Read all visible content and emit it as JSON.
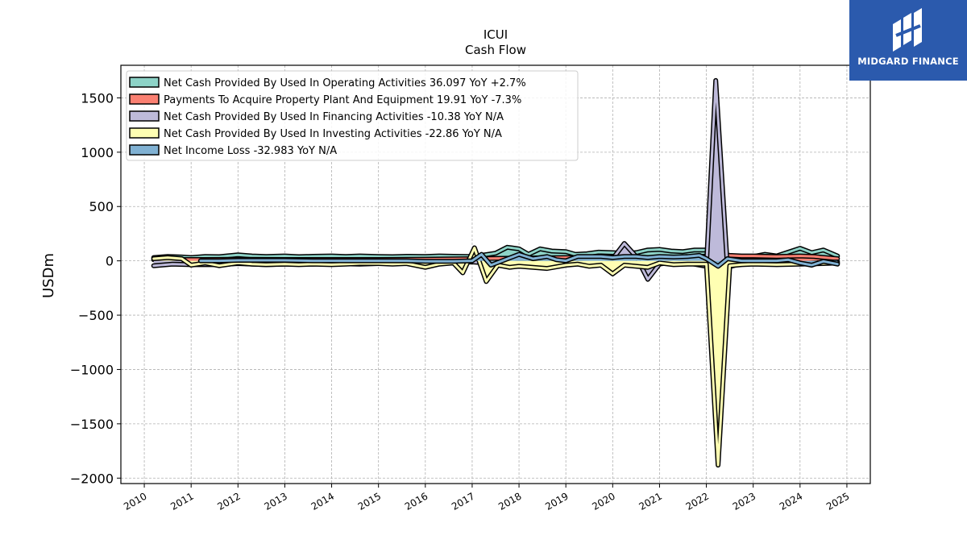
{
  "brand": {
    "name": "MIDGARD FINANCE",
    "logo_icon": "midgard-logo-icon",
    "background": "#2b5aad"
  },
  "chart_data": {
    "type": "area",
    "title": "ICUI",
    "subtitle": "Cash Flow",
    "xlabel": "",
    "ylabel": "USDm",
    "xlim": [
      2009.5,
      2025.5
    ],
    "ylim": [
      -2050,
      1800
    ],
    "x_ticks": [
      "2010",
      "2011",
      "2012",
      "2013",
      "2014",
      "2015",
      "2016",
      "2017",
      "2018",
      "2019",
      "2020",
      "2021",
      "2022",
      "2023",
      "2024",
      "2025"
    ],
    "y_ticks": [
      1500,
      1000,
      500,
      0,
      -500,
      -1000,
      -1500,
      -2000
    ],
    "y_tick_labels": [
      "1500",
      "1000",
      "500",
      "0",
      "−500",
      "−1000",
      "−1500",
      "−2000"
    ],
    "grid": true,
    "legend_position": "top-left",
    "series": [
      {
        "name": "Net Cash Provided By Used In Operating Activities",
        "legend": "Net Cash Provided By Used In Operating Activities  36.097 YoY +2.7%",
        "color": "#8dd3c7",
        "points": [
          [
            2010.2,
            30
          ],
          [
            2010.5,
            40
          ],
          [
            2010.8,
            35
          ],
          [
            2011.0,
            30
          ],
          [
            2011.3,
            40
          ],
          [
            2011.6,
            38
          ],
          [
            2012.0,
            55
          ],
          [
            2012.3,
            45
          ],
          [
            2012.6,
            40
          ],
          [
            2013.0,
            45
          ],
          [
            2013.3,
            38
          ],
          [
            2013.6,
            42
          ],
          [
            2014.0,
            45
          ],
          [
            2014.3,
            40
          ],
          [
            2014.6,
            45
          ],
          [
            2015.0,
            40
          ],
          [
            2015.3,
            38
          ],
          [
            2015.6,
            42
          ],
          [
            2016.0,
            40
          ],
          [
            2016.3,
            45
          ],
          [
            2016.6,
            42
          ],
          [
            2016.9,
            40
          ],
          [
            2017.0,
            45
          ],
          [
            2017.2,
            50
          ],
          [
            2017.5,
            70
          ],
          [
            2017.75,
            125
          ],
          [
            2018.0,
            110
          ],
          [
            2018.2,
            60
          ],
          [
            2018.45,
            110
          ],
          [
            2018.7,
            90
          ],
          [
            2019.0,
            85
          ],
          [
            2019.2,
            60
          ],
          [
            2019.45,
            65
          ],
          [
            2019.7,
            80
          ],
          [
            2020.0,
            75
          ],
          [
            2020.25,
            70
          ],
          [
            2020.5,
            75
          ],
          [
            2020.75,
            100
          ],
          [
            2021.0,
            105
          ],
          [
            2021.25,
            90
          ],
          [
            2021.5,
            85
          ],
          [
            2021.75,
            100
          ],
          [
            2022.0,
            100
          ],
          [
            2022.25,
            45
          ],
          [
            2022.5,
            40
          ],
          [
            2022.75,
            35
          ],
          [
            2023.0,
            40
          ],
          [
            2023.25,
            60
          ],
          [
            2023.5,
            45
          ],
          [
            2023.75,
            80
          ],
          [
            2024.0,
            115
          ],
          [
            2024.25,
            75
          ],
          [
            2024.5,
            100
          ],
          [
            2024.8,
            45
          ]
        ]
      },
      {
        "name": "Payments To Acquire Property Plant And Equipment",
        "legend": "Payments To Acquire Property Plant And Equipment  19.91 YoY -7.3%",
        "color": "#fb8072",
        "points": [
          [
            2010.2,
            10
          ],
          [
            2011.0,
            12
          ],
          [
            2012.0,
            14
          ],
          [
            2013.0,
            12
          ],
          [
            2014.0,
            12
          ],
          [
            2015.0,
            12
          ],
          [
            2016.0,
            15
          ],
          [
            2017.0,
            20
          ],
          [
            2018.0,
            25
          ],
          [
            2019.0,
            30
          ],
          [
            2020.0,
            30
          ],
          [
            2021.0,
            30
          ],
          [
            2021.8,
            35
          ],
          [
            2022.0,
            45
          ],
          [
            2022.25,
            60
          ],
          [
            2022.5,
            50
          ],
          [
            2022.75,
            45
          ],
          [
            2023.0,
            45
          ],
          [
            2023.5,
            40
          ],
          [
            2024.0,
            45
          ],
          [
            2024.3,
            40
          ],
          [
            2024.8,
            20
          ]
        ]
      },
      {
        "name": "Net Cash Provided By Used In Financing Activities",
        "legend": "Net Cash Provided By Used In Financing Activities  -10.38 YoY N/A",
        "color": "#bebada",
        "points": [
          [
            2010.2,
            -45
          ],
          [
            2010.6,
            -30
          ],
          [
            2011.0,
            -35
          ],
          [
            2011.6,
            -35
          ],
          [
            2012.0,
            -25
          ],
          [
            2012.6,
            -35
          ],
          [
            2013.0,
            -30
          ],
          [
            2013.6,
            -30
          ],
          [
            2014.0,
            -25
          ],
          [
            2014.6,
            -30
          ],
          [
            2015.0,
            -25
          ],
          [
            2015.6,
            -20
          ],
          [
            2016.0,
            -20
          ],
          [
            2016.5,
            -20
          ],
          [
            2017.0,
            -10
          ],
          [
            2017.3,
            -20
          ],
          [
            2017.6,
            -40
          ],
          [
            2018.0,
            -20
          ],
          [
            2018.5,
            -15
          ],
          [
            2019.0,
            -20
          ],
          [
            2019.5,
            -10
          ],
          [
            2020.0,
            20
          ],
          [
            2020.25,
            160
          ],
          [
            2020.5,
            40
          ],
          [
            2020.75,
            -170
          ],
          [
            2021.0,
            -30
          ],
          [
            2021.3,
            -10
          ],
          [
            2021.6,
            -20
          ],
          [
            2022.0,
            -50
          ],
          [
            2022.2,
            1660
          ],
          [
            2022.45,
            -60
          ],
          [
            2022.7,
            -30
          ],
          [
            2023.0,
            -25
          ],
          [
            2023.5,
            -20
          ],
          [
            2024.0,
            -25
          ],
          [
            2024.5,
            -15
          ],
          [
            2024.8,
            -10
          ]
        ]
      },
      {
        "name": "Net Cash Provided By Used In Investing Activities",
        "legend": "Net Cash Provided By Used In Investing Activities  -22.86 YoY N/A",
        "color": "#ffffb3",
        "points": [
          [
            2010.2,
            20
          ],
          [
            2010.5,
            30
          ],
          [
            2010.8,
            20
          ],
          [
            2011.0,
            -40
          ],
          [
            2011.3,
            -20
          ],
          [
            2011.6,
            -45
          ],
          [
            2012.0,
            -20
          ],
          [
            2012.3,
            -30
          ],
          [
            2012.6,
            -35
          ],
          [
            2013.0,
            -30
          ],
          [
            2013.3,
            -35
          ],
          [
            2013.6,
            -30
          ],
          [
            2014.0,
            -35
          ],
          [
            2014.3,
            -30
          ],
          [
            2014.6,
            -25
          ],
          [
            2015.0,
            -25
          ],
          [
            2015.3,
            -30
          ],
          [
            2015.6,
            -25
          ],
          [
            2016.0,
            -60
          ],
          [
            2016.3,
            -30
          ],
          [
            2016.6,
            -20
          ],
          [
            2016.8,
            -110
          ],
          [
            2017.05,
            120
          ],
          [
            2017.3,
            -190
          ],
          [
            2017.55,
            -40
          ],
          [
            2017.8,
            -60
          ],
          [
            2018.0,
            -50
          ],
          [
            2018.3,
            -60
          ],
          [
            2018.6,
            -70
          ],
          [
            2019.0,
            -40
          ],
          [
            2019.25,
            -30
          ],
          [
            2019.5,
            -50
          ],
          [
            2019.75,
            -40
          ],
          [
            2020.0,
            -120
          ],
          [
            2020.25,
            -40
          ],
          [
            2020.5,
            -50
          ],
          [
            2020.75,
            -60
          ],
          [
            2021.0,
            -20
          ],
          [
            2021.3,
            -35
          ],
          [
            2021.6,
            -30
          ],
          [
            2022.0,
            -30
          ],
          [
            2022.25,
            -1880
          ],
          [
            2022.5,
            -45
          ],
          [
            2022.75,
            -35
          ],
          [
            2023.0,
            -30
          ],
          [
            2023.5,
            -35
          ],
          [
            2024.0,
            -30
          ],
          [
            2024.5,
            -25
          ],
          [
            2024.8,
            -20
          ]
        ]
      },
      {
        "name": "Net Income Loss",
        "legend": "Net Income Loss  -32.983 YoY N/A",
        "color": "#80b1d3",
        "points": [
          [
            2011.2,
            0
          ],
          [
            2011.6,
            0
          ],
          [
            2012.0,
            5
          ],
          [
            2012.6,
            5
          ],
          [
            2013.0,
            5
          ],
          [
            2013.6,
            0
          ],
          [
            2014.0,
            0
          ],
          [
            2014.6,
            0
          ],
          [
            2015.0,
            0
          ],
          [
            2015.6,
            0
          ],
          [
            2016.0,
            -5
          ],
          [
            2016.6,
            -5
          ],
          [
            2017.0,
            0
          ],
          [
            2017.2,
            60
          ],
          [
            2017.4,
            -40
          ],
          [
            2017.7,
            10
          ],
          [
            2018.0,
            60
          ],
          [
            2018.3,
            20
          ],
          [
            2018.6,
            40
          ],
          [
            2018.8,
            10
          ],
          [
            2019.0,
            0
          ],
          [
            2019.25,
            40
          ],
          [
            2019.5,
            40
          ],
          [
            2019.75,
            40
          ],
          [
            2020.0,
            30
          ],
          [
            2020.25,
            40
          ],
          [
            2020.5,
            40
          ],
          [
            2020.75,
            30
          ],
          [
            2021.0,
            40
          ],
          [
            2021.3,
            35
          ],
          [
            2021.6,
            40
          ],
          [
            2021.85,
            50
          ],
          [
            2022.0,
            20
          ],
          [
            2022.25,
            -50
          ],
          [
            2022.45,
            20
          ],
          [
            2022.75,
            0
          ],
          [
            2023.0,
            0
          ],
          [
            2023.5,
            0
          ],
          [
            2023.75,
            10
          ],
          [
            2024.0,
            -20
          ],
          [
            2024.25,
            -40
          ],
          [
            2024.5,
            -5
          ],
          [
            2024.8,
            -30
          ]
        ]
      }
    ]
  }
}
